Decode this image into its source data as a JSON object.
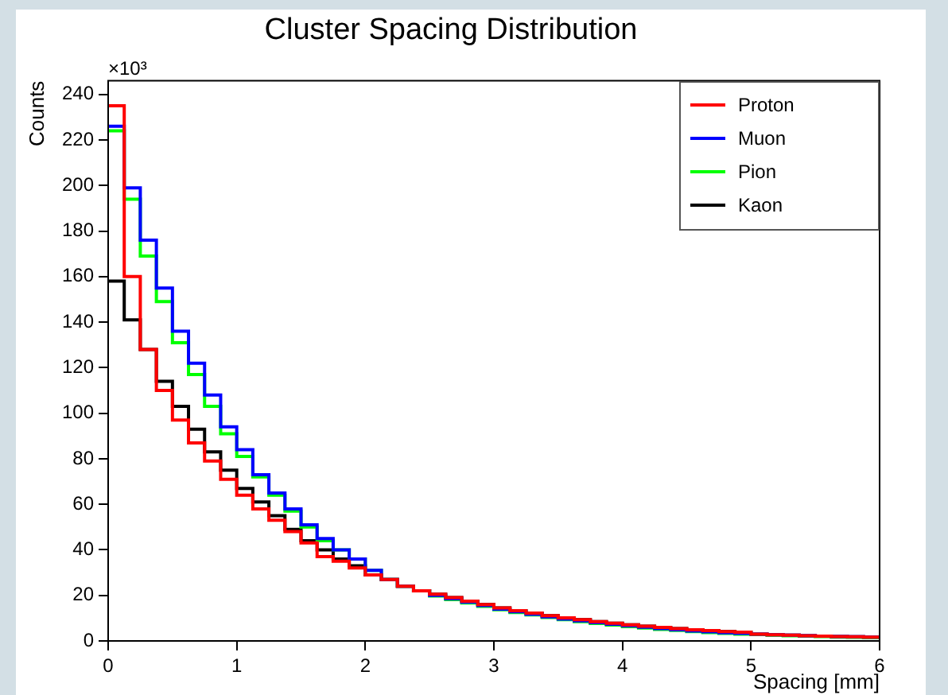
{
  "chart_data": {
    "type": "histogram",
    "title": "Cluster Spacing Distribution",
    "xlabel": "Spacing [mm]",
    "ylabel": "Counts",
    "annotations": [
      "×10³"
    ],
    "bins": [
      0,
      0.125,
      0.25,
      0.375,
      0.5,
      0.625,
      0.75,
      0.875,
      1,
      1.125,
      1.25,
      1.375,
      1.5,
      1.625,
      1.75,
      1.875,
      2,
      2.125,
      2.25,
      2.375,
      2.5,
      2.625,
      2.75,
      2.875,
      3,
      3.125,
      3.25,
      3.375,
      3.5,
      3.625,
      3.75,
      3.875,
      4,
      4.125,
      4.25,
      4.375,
      4.5,
      4.625,
      4.75,
      4.875,
      5,
      5.125,
      5.25,
      5.375,
      5.5,
      5.625,
      5.75,
      5.875,
      6
    ],
    "series": [
      {
        "name": "Proton",
        "color": "#ff0000",
        "values": [
          235,
          160,
          128,
          110,
          97,
          87,
          79,
          71,
          64,
          58,
          53,
          48,
          43,
          37,
          35,
          32,
          29,
          27,
          24,
          22,
          20.5,
          19,
          17.5,
          16,
          14.5,
          13.3,
          12.2,
          11.1,
          10.1,
          9.3,
          8.5,
          7.8,
          7.1,
          6.5,
          5.9,
          5.4,
          4.9,
          4.5,
          4.1,
          3.8,
          3,
          2.7,
          2.5,
          2.3,
          2.1,
          1.9,
          1.8,
          1.7
        ]
      },
      {
        "name": "Muon",
        "color": "#0000ff",
        "values": [
          226,
          199,
          176,
          155,
          136,
          122,
          108,
          94,
          84,
          73,
          65,
          58,
          51,
          45,
          40,
          36,
          31,
          27,
          24,
          22,
          20,
          18.5,
          17,
          15.5,
          14,
          12.8,
          11.7,
          10.6,
          9.6,
          8.8,
          8,
          7.3,
          6.6,
          6,
          5.4,
          4.9,
          4.4,
          4,
          3.6,
          3.3,
          3,
          2.7,
          2.5,
          2.3,
          2.1,
          1.9,
          1.8,
          1.7
        ]
      },
      {
        "name": "Pion",
        "color": "#00ff00",
        "values": [
          224,
          194,
          169,
          149,
          131,
          117,
          103,
          91,
          81,
          72,
          64,
          57,
          50,
          44,
          40,
          36,
          31,
          27,
          24,
          22,
          19.7,
          18.2,
          16.7,
          15.2,
          13.7,
          12.5,
          11.4,
          10.3,
          9.3,
          8.5,
          7.7,
          7,
          6.3,
          5.7,
          5.1,
          4.6,
          4.1,
          3.7,
          3.3,
          3,
          2.8,
          2.5,
          2.3,
          2.1,
          1.9,
          1.7,
          1.6,
          1.5
        ]
      },
      {
        "name": "Kaon",
        "color": "#000000",
        "values": [
          158,
          141,
          128,
          114,
          103,
          93,
          83,
          75,
          67,
          61,
          55,
          49,
          44,
          40,
          36,
          33,
          29,
          27,
          24,
          22,
          20.5,
          19,
          17.5,
          16,
          14.5,
          13.3,
          12.2,
          11.1,
          10.1,
          9.3,
          8.5,
          7.8,
          7.1,
          6.5,
          5.9,
          5.4,
          4.9,
          4.5,
          4.1,
          3.8,
          3,
          2.7,
          2.5,
          2.3,
          2.1,
          1.9,
          1.8,
          1.7
        ]
      }
    ],
    "xlim": [
      0,
      6
    ],
    "xticks": [
      0,
      1,
      2,
      3,
      4,
      5,
      6
    ],
    "ylim": [
      0,
      246
    ],
    "yticks": [
      0,
      20,
      40,
      60,
      80,
      100,
      120,
      140,
      160,
      180,
      200,
      220,
      240
    ],
    "grid": false,
    "legend": "top right"
  }
}
